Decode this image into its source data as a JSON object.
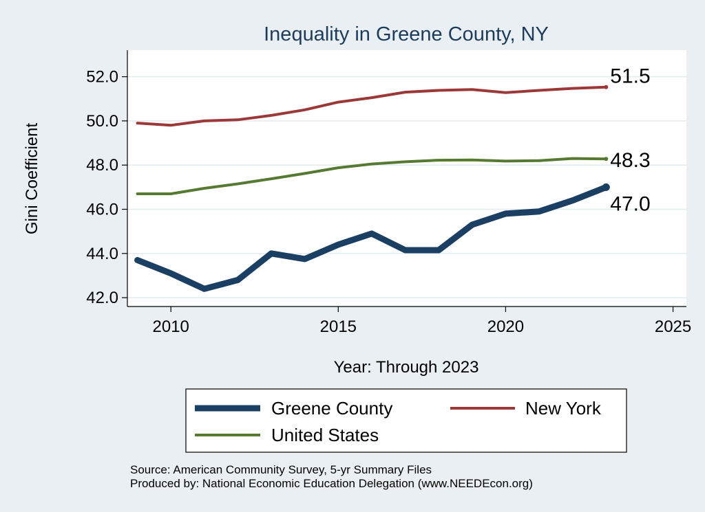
{
  "chart_data": {
    "type": "line",
    "title": "Inequality in Greene County, NY",
    "xlabel": "Year: Through 2023",
    "ylabel": "Gini Coefficient",
    "xlim": [
      2008.7,
      2025.4
    ],
    "ylim": [
      41.6,
      53.2
    ],
    "x_ticks": [
      {
        "value": 2010,
        "label": "2010"
      },
      {
        "value": 2015,
        "label": "2015"
      },
      {
        "value": 2020,
        "label": "2020"
      },
      {
        "value": 2025,
        "label": "2025"
      }
    ],
    "y_ticks": [
      {
        "value": 42,
        "label": "42.0"
      },
      {
        "value": 44,
        "label": "44.0"
      },
      {
        "value": 46,
        "label": "46.0"
      },
      {
        "value": 48,
        "label": "48.0"
      },
      {
        "value": 50,
        "label": "50.0"
      },
      {
        "value": 52,
        "label": "52.0"
      }
    ],
    "grid": true,
    "x": [
      2009,
      2010,
      2011,
      2012,
      2013,
      2014,
      2015,
      2016,
      2017,
      2018,
      2019,
      2020,
      2021,
      2022,
      2023
    ],
    "series": [
      {
        "name": "Greene County",
        "color": "#1b3f62",
        "weight": "thick",
        "values": [
          43.7,
          43.1,
          42.4,
          42.8,
          44.0,
          43.75,
          44.4,
          44.9,
          44.15,
          44.15,
          45.3,
          45.8,
          45.9,
          46.4,
          47.0
        ],
        "end_label": "47.0"
      },
      {
        "name": "New York",
        "color": "#9c3838",
        "weight": "medium",
        "values": [
          49.9,
          49.8,
          50.0,
          50.05,
          50.25,
          50.5,
          50.85,
          51.05,
          51.3,
          51.38,
          51.42,
          51.28,
          51.38,
          51.47,
          51.53
        ],
        "end_label": "51.5"
      },
      {
        "name": "United States",
        "color": "#567a32",
        "weight": "medium",
        "values": [
          46.7,
          46.7,
          46.95,
          47.15,
          47.38,
          47.62,
          47.88,
          48.05,
          48.15,
          48.22,
          48.23,
          48.18,
          48.2,
          48.3,
          48.28
        ],
        "end_label": "48.3"
      }
    ],
    "legend": {
      "position": "bottom",
      "entries": [
        "Greene County",
        "New York",
        "United States"
      ]
    }
  },
  "source": {
    "line1": "Source: American Community Survey, 5-yr Summary Files",
    "line2": "Produced by: National Economic Education Delegation (www.NEEDEcon.org)"
  }
}
